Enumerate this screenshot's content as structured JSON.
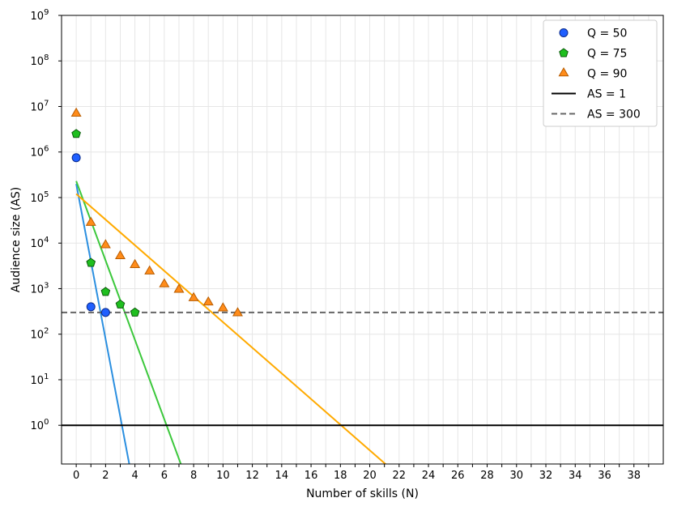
{
  "chart_data": {
    "type": "scatter",
    "xlabel": "Number of skills (N)",
    "ylabel": "Audience size (AS)",
    "x_range": [
      -1,
      40
    ],
    "y_range_log10": [
      -0.85,
      9
    ],
    "y_scale": "log",
    "grid": true,
    "legend_position": "top-right",
    "x_ticks": [
      0,
      2,
      4,
      6,
      8,
      10,
      12,
      14,
      16,
      18,
      20,
      22,
      24,
      26,
      28,
      30,
      32,
      34,
      36,
      38
    ],
    "y_tick_exponents": [
      0,
      1,
      2,
      3,
      4,
      5,
      6,
      7,
      8,
      9
    ],
    "y_tick_base": "10",
    "series": [
      {
        "name": "Q = 50",
        "marker": "circle",
        "color": "#1f5fff",
        "edge_color": "#0a2a8a",
        "points": [
          {
            "x": 0,
            "y": 750000
          },
          {
            "x": 1,
            "y": 400
          },
          {
            "x": 2,
            "y": 300
          }
        ]
      },
      {
        "name": "Q = 75",
        "marker": "pentagon",
        "color": "#1fbf1f",
        "edge_color": "#0a5a0a",
        "points": [
          {
            "x": 0,
            "y": 2500000
          },
          {
            "x": 1,
            "y": 3700
          },
          {
            "x": 2,
            "y": 850
          },
          {
            "x": 3,
            "y": 450
          },
          {
            "x": 4,
            "y": 300
          }
        ]
      },
      {
        "name": "Q = 90",
        "marker": "triangle",
        "color": "#ff8c1a",
        "edge_color": "#b85c00",
        "points": [
          {
            "x": 0,
            "y": 7000000
          },
          {
            "x": 1,
            "y": 28000
          },
          {
            "x": 2,
            "y": 9000
          },
          {
            "x": 3,
            "y": 5200
          },
          {
            "x": 4,
            "y": 3300
          },
          {
            "x": 5,
            "y": 2400
          },
          {
            "x": 6,
            "y": 1250
          },
          {
            "x": 7,
            "y": 950
          },
          {
            "x": 8,
            "y": 620
          },
          {
            "x": 9,
            "y": 500
          },
          {
            "x": 10,
            "y": 370
          },
          {
            "x": 11,
            "y": 290
          }
        ]
      }
    ],
    "fit_lines": [
      {
        "color": "#2b8fe0",
        "x": [
          0,
          3.7
        ],
        "y": [
          200000,
          0.1
        ]
      },
      {
        "color": "#3cc83c",
        "x": [
          0,
          7.3
        ],
        "y": [
          230000,
          0.1
        ]
      },
      {
        "color": "#ffaa00",
        "x": [
          0,
          21.6
        ],
        "y": [
          120000,
          0.1
        ]
      }
    ],
    "reference_lines": [
      {
        "name": "AS = 1",
        "y": 1,
        "color": "#000000",
        "style": "solid"
      },
      {
        "name": "AS = 300",
        "y": 300,
        "color": "#666666",
        "style": "dashed"
      }
    ]
  }
}
